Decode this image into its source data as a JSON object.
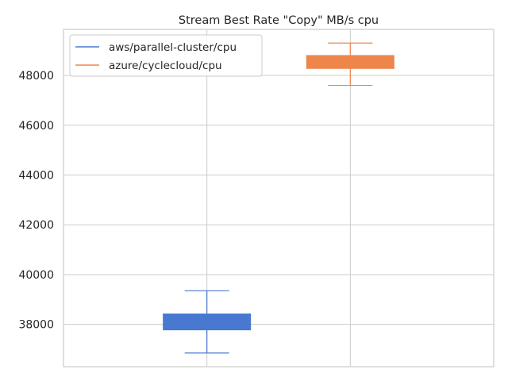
{
  "chart_data": {
    "type": "box",
    "title": "Stream Best Rate \"Copy\" MB/s cpu",
    "xlabel": "",
    "ylabel": "",
    "ylim": [
      36300,
      49850
    ],
    "yticks": [
      38000,
      40000,
      42000,
      44000,
      46000,
      48000
    ],
    "grid": true,
    "legend_position": "top-left",
    "series": [
      {
        "name": "aws/parallel-cluster/cpu",
        "color": "#4878d0",
        "whisker_low": 36850,
        "q1": 37780,
        "q3": 38420,
        "whisker_high": 39350
      },
      {
        "name": "azure/cyclecloud/cpu",
        "color": "#ee854a",
        "whisker_low": 47600,
        "q1": 48280,
        "q3": 48800,
        "whisker_high": 49300
      }
    ]
  }
}
